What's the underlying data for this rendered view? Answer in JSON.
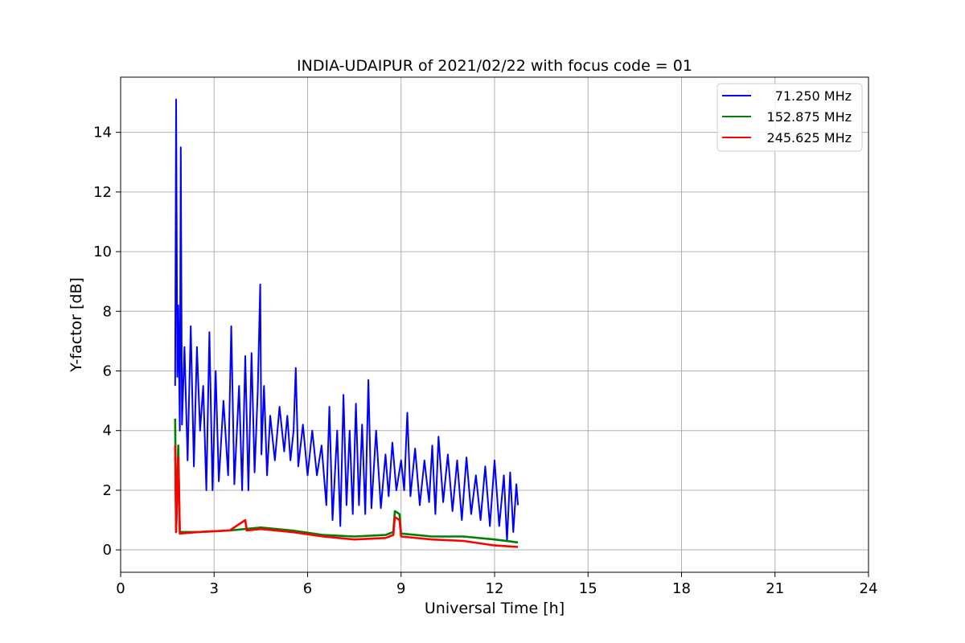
{
  "chart_data": {
    "type": "line",
    "title": "INDIA-UDAIPUR of 2021/02/22 with focus code = 01",
    "xlabel": "Universal Time [h]",
    "ylabel": "Y-factor [dB]",
    "xlim": [
      0,
      24
    ],
    "ylim": [
      -0.75,
      15.85
    ],
    "xticks": [
      0,
      3,
      6,
      9,
      12,
      15,
      18,
      21,
      24
    ],
    "yticks": [
      0,
      2,
      4,
      6,
      8,
      10,
      12,
      14
    ],
    "grid": true,
    "legend_position": "top-right",
    "series": [
      {
        "name": "71.250 MHz",
        "color": "#0000ff",
        "points": [
          [
            1.75,
            5.5
          ],
          [
            1.78,
            15.1
          ],
          [
            1.82,
            5.8
          ],
          [
            1.85,
            8.2
          ],
          [
            1.9,
            4.0
          ],
          [
            1.93,
            13.5
          ],
          [
            1.97,
            4.2
          ],
          [
            2.05,
            6.8
          ],
          [
            2.15,
            3.0
          ],
          [
            2.25,
            7.5
          ],
          [
            2.35,
            2.8
          ],
          [
            2.45,
            6.8
          ],
          [
            2.55,
            4.0
          ],
          [
            2.65,
            5.5
          ],
          [
            2.75,
            2.0
          ],
          [
            2.85,
            7.3
          ],
          [
            2.95,
            2.0
          ],
          [
            3.05,
            6.0
          ],
          [
            3.15,
            2.3
          ],
          [
            3.3,
            5.0
          ],
          [
            3.45,
            2.5
          ],
          [
            3.55,
            7.5
          ],
          [
            3.65,
            2.2
          ],
          [
            3.8,
            5.5
          ],
          [
            3.9,
            2.0
          ],
          [
            4.0,
            6.5
          ],
          [
            4.1,
            2.0
          ],
          [
            4.2,
            6.6
          ],
          [
            4.3,
            2.6
          ],
          [
            4.4,
            5.3
          ],
          [
            4.48,
            8.9
          ],
          [
            4.52,
            3.2
          ],
          [
            4.6,
            5.5
          ],
          [
            4.7,
            2.5
          ],
          [
            4.8,
            4.5
          ],
          [
            4.95,
            3.0
          ],
          [
            5.1,
            4.8
          ],
          [
            5.25,
            3.3
          ],
          [
            5.35,
            4.5
          ],
          [
            5.45,
            3.0
          ],
          [
            5.55,
            4.0
          ],
          [
            5.62,
            6.1
          ],
          [
            5.7,
            2.8
          ],
          [
            5.85,
            4.2
          ],
          [
            6.0,
            2.5
          ],
          [
            6.15,
            4.0
          ],
          [
            6.3,
            2.5
          ],
          [
            6.45,
            3.5
          ],
          [
            6.6,
            1.5
          ],
          [
            6.7,
            4.8
          ],
          [
            6.8,
            1.0
          ],
          [
            6.95,
            4.0
          ],
          [
            7.05,
            0.8
          ],
          [
            7.15,
            5.2
          ],
          [
            7.25,
            1.5
          ],
          [
            7.35,
            4.0
          ],
          [
            7.45,
            1.2
          ],
          [
            7.55,
            4.9
          ],
          [
            7.65,
            1.5
          ],
          [
            7.75,
            4.2
          ],
          [
            7.85,
            1.2
          ],
          [
            7.95,
            5.7
          ],
          [
            8.05,
            1.4
          ],
          [
            8.2,
            4.0
          ],
          [
            8.35,
            1.4
          ],
          [
            8.5,
            3.2
          ],
          [
            8.6,
            1.8
          ],
          [
            8.72,
            3.6
          ],
          [
            8.85,
            2.0
          ],
          [
            9.0,
            3.0
          ],
          [
            9.1,
            2.0
          ],
          [
            9.2,
            4.6
          ],
          [
            9.3,
            1.8
          ],
          [
            9.45,
            3.4
          ],
          [
            9.6,
            1.5
          ],
          [
            9.75,
            3.0
          ],
          [
            9.9,
            1.6
          ],
          [
            10.0,
            3.5
          ],
          [
            10.1,
            1.2
          ],
          [
            10.2,
            3.8
          ],
          [
            10.35,
            1.6
          ],
          [
            10.5,
            3.2
          ],
          [
            10.65,
            1.3
          ],
          [
            10.8,
            3.0
          ],
          [
            10.95,
            1.0
          ],
          [
            11.1,
            3.1
          ],
          [
            11.25,
            1.2
          ],
          [
            11.4,
            2.5
          ],
          [
            11.55,
            1.0
          ],
          [
            11.7,
            2.8
          ],
          [
            11.85,
            0.8
          ],
          [
            12.0,
            3.0
          ],
          [
            12.15,
            0.8
          ],
          [
            12.3,
            2.5
          ],
          [
            12.4,
            0.3
          ],
          [
            12.5,
            2.6
          ],
          [
            12.6,
            0.6
          ],
          [
            12.7,
            2.2
          ],
          [
            12.75,
            1.5
          ]
        ]
      },
      {
        "name": "152.875 MHz",
        "color": "#008000",
        "points": [
          [
            1.75,
            4.4
          ],
          [
            1.78,
            0.6
          ],
          [
            1.85,
            3.5
          ],
          [
            1.9,
            0.6
          ],
          [
            2.5,
            0.6
          ],
          [
            3.5,
            0.65
          ],
          [
            4.5,
            0.75
          ],
          [
            5.5,
            0.65
          ],
          [
            6.5,
            0.5
          ],
          [
            7.5,
            0.45
          ],
          [
            8.5,
            0.5
          ],
          [
            8.75,
            0.6
          ],
          [
            8.8,
            1.3
          ],
          [
            8.95,
            1.2
          ],
          [
            9.0,
            0.55
          ],
          [
            10.0,
            0.45
          ],
          [
            11.0,
            0.45
          ],
          [
            12.0,
            0.35
          ],
          [
            12.75,
            0.25
          ]
        ]
      },
      {
        "name": "245.625 MHz",
        "color": "#ff0000",
        "points": [
          [
            1.75,
            3.5
          ],
          [
            1.78,
            0.6
          ],
          [
            1.85,
            3.1
          ],
          [
            1.9,
            0.55
          ],
          [
            2.5,
            0.6
          ],
          [
            3.5,
            0.65
          ],
          [
            4.0,
            1.0
          ],
          [
            4.05,
            0.65
          ],
          [
            4.5,
            0.7
          ],
          [
            5.5,
            0.6
          ],
          [
            6.5,
            0.45
          ],
          [
            7.5,
            0.35
          ],
          [
            8.5,
            0.4
          ],
          [
            8.75,
            0.5
          ],
          [
            8.8,
            1.1
          ],
          [
            8.95,
            1.0
          ],
          [
            9.0,
            0.45
          ],
          [
            10.0,
            0.35
          ],
          [
            11.0,
            0.3
          ],
          [
            12.0,
            0.15
          ],
          [
            12.75,
            0.1
          ]
        ]
      }
    ]
  }
}
